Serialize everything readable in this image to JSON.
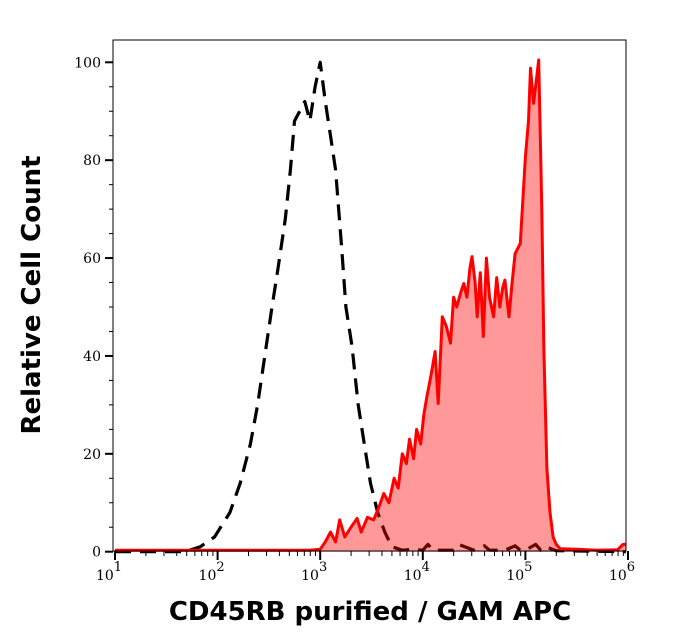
{
  "chart_data": {
    "type": "area",
    "xlabel": "CD45RB purified / GAM APC",
    "ylabel": "Relative Cell Count",
    "xscale": "log",
    "xlim": [
      10,
      1000000
    ],
    "ylim": [
      0,
      104.6
    ],
    "grid": false,
    "x_ticks": [
      {
        "base": "10",
        "exp": "1",
        "value": 10
      },
      {
        "base": "10",
        "exp": "2",
        "value": 100
      },
      {
        "base": "10",
        "exp": "3",
        "value": 1000
      },
      {
        "base": "10",
        "exp": "4",
        "value": 10000
      },
      {
        "base": "10",
        "exp": "5",
        "value": 100000
      },
      {
        "base": "10",
        "exp": "6",
        "value": 1000000
      }
    ],
    "y_ticks": [
      "0",
      "20",
      "40",
      "60",
      "80",
      "100"
    ],
    "series": [
      {
        "style": "dashed",
        "color": "#000000",
        "filled": false,
        "log10_x": [
          1.0,
          1.5,
          1.68,
          1.83,
          1.97,
          2.12,
          2.22,
          2.32,
          2.39,
          2.46,
          2.53,
          2.59,
          2.66,
          2.71,
          2.75,
          2.8,
          2.85,
          2.9,
          2.95,
          3.0,
          3.05,
          3.1,
          3.15,
          3.21,
          3.25,
          3.31,
          3.37,
          3.43,
          3.49,
          3.56,
          3.63,
          3.7,
          3.8,
          3.9,
          4.0,
          4.05,
          4.1,
          4.3,
          4.35,
          4.5,
          4.6,
          4.65,
          4.8,
          4.9,
          4.95,
          5.0,
          5.1,
          5.15,
          5.2,
          5.3,
          5.98
        ],
        "y": [
          0,
          0,
          0,
          1,
          3,
          8,
          14,
          22,
          30,
          40,
          50,
          58,
          68,
          78,
          88,
          90,
          92,
          88,
          95,
          100,
          92,
          85,
          78,
          62,
          50,
          42,
          30,
          22,
          14,
          8,
          4,
          1,
          0.3,
          0.5,
          0.3,
          1.5,
          0.3,
          0.3,
          1.5,
          0.3,
          1.2,
          0.3,
          0.3,
          1.2,
          0.3,
          0.3,
          1.5,
          0.3,
          1,
          0.2,
          0
        ]
      },
      {
        "style": "solid",
        "color": "#ff0000",
        "fill": "#ff9999",
        "filled": true,
        "log10_x": [
          1.0,
          2.9,
          3.0,
          3.05,
          3.1,
          3.15,
          3.19,
          3.24,
          3.3,
          3.36,
          3.4,
          3.46,
          3.52,
          3.57,
          3.62,
          3.67,
          3.72,
          3.76,
          3.8,
          3.84,
          3.87,
          3.91,
          3.94,
          3.98,
          4.01,
          4.04,
          4.08,
          4.12,
          4.15,
          4.19,
          4.23,
          4.27,
          4.3,
          4.33,
          4.37,
          4.4,
          4.43,
          4.46,
          4.48,
          4.51,
          4.53,
          4.56,
          4.59,
          4.62,
          4.65,
          4.69,
          4.72,
          4.75,
          4.78,
          4.8,
          4.84,
          4.87,
          4.9,
          4.95,
          5.0,
          5.03,
          5.05,
          5.08,
          5.11,
          5.13,
          5.16,
          5.18,
          5.21,
          5.24,
          5.27,
          5.3,
          5.34,
          5.5,
          5.7,
          5.9,
          5.95,
          5.98
        ],
        "y": [
          0.3,
          0.3,
          0.5,
          2,
          4,
          2,
          6.5,
          3,
          5,
          6.8,
          4,
          7,
          6.5,
          9,
          11.9,
          10,
          15,
          13,
          20,
          18,
          23,
          19,
          25,
          22,
          28,
          31.7,
          36,
          40.9,
          30.3,
          48,
          46,
          42.6,
          52,
          50,
          53,
          54.8,
          52,
          58,
          60.3,
          55,
          48,
          57,
          44,
          60,
          52,
          48,
          56,
          50,
          54,
          55.5,
          48,
          55,
          60.9,
          63,
          80.7,
          88,
          98.8,
          91.6,
          97,
          100.5,
          70,
          41,
          17,
          8,
          3,
          1.5,
          0.6,
          0.5,
          0.3,
          0.4,
          1.5,
          1.5
        ]
      }
    ]
  }
}
